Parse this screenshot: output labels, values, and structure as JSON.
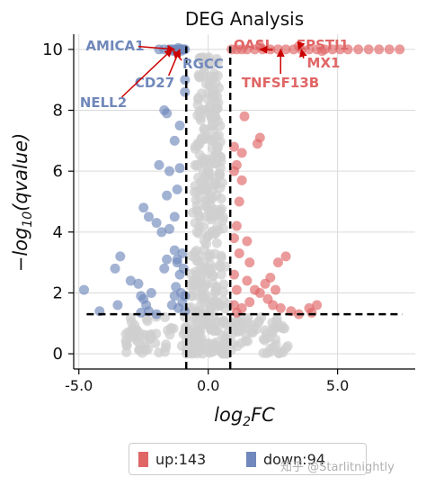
{
  "chart_data": {
    "type": "scatter",
    "title": "DEG Analysis",
    "xlabel_base": "log",
    "xlabel_sub": "2",
    "xlabel_tail": "FC",
    "ylabel_prefix": "−log",
    "ylabel_sub": "10",
    "ylabel_tail": "(qvalue)",
    "xlim": [
      -5.2,
      8.0
    ],
    "ylim": [
      -0.5,
      10.5
    ],
    "xticks": [
      -5.0,
      0.0,
      5.0
    ],
    "xtick_labels": [
      "-5.0",
      "0.0",
      "5.0"
    ],
    "yticks": [
      0,
      2,
      4,
      6,
      8,
      10
    ],
    "ytick_labels": [
      "0",
      "2",
      "4",
      "6",
      "8",
      "10"
    ],
    "grid": true,
    "thresholds": {
      "log2fc": 0.85,
      "neglog10q": 1.3
    },
    "colors": {
      "up": "#e06666",
      "down": "#7088bb",
      "ns": "#cfcfcf",
      "arrow": "#cc0000",
      "axis": "#000000"
    },
    "series": [
      {
        "key": "down",
        "points": [
          [
            -4.8,
            2.1
          ],
          [
            -4.2,
            1.4
          ],
          [
            -3.5,
            1.6
          ],
          [
            -3.6,
            2.8
          ],
          [
            -3.4,
            3.2
          ],
          [
            -3.0,
            2.4
          ],
          [
            -2.7,
            2.3
          ],
          [
            -2.6,
            1.9
          ],
          [
            -2.5,
            1.8
          ],
          [
            -2.3,
            1.4
          ],
          [
            -2.0,
            1.3
          ],
          [
            -2.6,
            1.35
          ],
          [
            -2.4,
            1.6
          ],
          [
            -2.2,
            2.0
          ],
          [
            -2.5,
            4.8
          ],
          [
            -2.3,
            4.5
          ],
          [
            -2.0,
            4.3
          ],
          [
            -1.8,
            4.0
          ],
          [
            -1.5,
            4.1
          ],
          [
            -1.3,
            4.5
          ],
          [
            -1.6,
            5.2
          ],
          [
            -1.2,
            5.4
          ],
          [
            -1.5,
            6.0
          ],
          [
            -1.1,
            6.1
          ],
          [
            -1.9,
            6.2
          ],
          [
            -1.3,
            7.0
          ],
          [
            -1.1,
            7.5
          ],
          [
            -1.7,
            8.0
          ],
          [
            -1.6,
            7.9
          ],
          [
            -0.9,
            9.0
          ],
          [
            -0.9,
            8.6
          ],
          [
            -1.2,
            3.0
          ],
          [
            -1.3,
            3.4
          ],
          [
            -1.0,
            3.3
          ],
          [
            -1.2,
            3.1
          ],
          [
            -1.1,
            2.6
          ],
          [
            -0.95,
            2.8
          ],
          [
            -1.25,
            2.2
          ],
          [
            -1.05,
            2.0
          ],
          [
            -0.9,
            1.9
          ],
          [
            -1.4,
            1.6
          ],
          [
            -1.15,
            1.5
          ],
          [
            -0.9,
            1.4
          ],
          [
            -1.7,
            2.8
          ],
          [
            -1.6,
            3.1
          ],
          [
            -1.0,
            1.7
          ],
          [
            -1.3,
            1.9
          ],
          [
            -1.9,
            10.0
          ],
          [
            -1.7,
            10.0
          ],
          [
            -1.5,
            10.0
          ],
          [
            -1.4,
            10.0
          ],
          [
            -1.3,
            10.0
          ],
          [
            -1.2,
            10.0
          ],
          [
            -1.1,
            10.0
          ],
          [
            -1.0,
            10.0
          ],
          [
            -0.95,
            10.0
          ],
          [
            -0.9,
            10.0
          ],
          [
            -1.35,
            9.95
          ],
          [
            -1.25,
            9.95
          ],
          [
            -1.05,
            9.95
          ],
          [
            -1.15,
            10.05
          ]
        ]
      },
      {
        "key": "up",
        "points": [
          [
            1.0,
            1.6
          ],
          [
            1.1,
            2.1
          ],
          [
            1.0,
            2.6
          ],
          [
            1.2,
            3.3
          ],
          [
            1.0,
            3.8
          ],
          [
            1.1,
            4.2
          ],
          [
            1.2,
            5.0
          ],
          [
            1.3,
            5.7
          ],
          [
            1.1,
            6.2
          ],
          [
            1.3,
            6.6
          ],
          [
            1.0,
            6.0
          ],
          [
            1.0,
            6.8
          ],
          [
            1.4,
            7.8
          ],
          [
            1.9,
            6.9
          ],
          [
            2.0,
            7.1
          ],
          [
            1.5,
            3.7
          ],
          [
            1.6,
            3.0
          ],
          [
            1.5,
            2.4
          ],
          [
            1.8,
            2.1
          ],
          [
            2.0,
            2.0
          ],
          [
            2.3,
            1.8
          ],
          [
            2.6,
            2.1
          ],
          [
            2.4,
            2.5
          ],
          [
            2.7,
            3.0
          ],
          [
            2.5,
            1.6
          ],
          [
            2.8,
            1.5
          ],
          [
            3.2,
            1.4
          ],
          [
            3.5,
            1.3
          ],
          [
            3.9,
            1.5
          ],
          [
            4.2,
            1.6
          ],
          [
            4.0,
            1.35
          ],
          [
            3.0,
            3.2
          ],
          [
            1.3,
            1.5
          ],
          [
            1.1,
            1.35
          ],
          [
            1.6,
            1.7
          ],
          [
            2.2,
            2.3
          ],
          [
            0.9,
            10.0
          ],
          [
            1.1,
            10.0
          ],
          [
            1.3,
            10.0
          ],
          [
            1.5,
            10.0
          ],
          [
            1.8,
            10.0
          ],
          [
            2.1,
            10.0
          ],
          [
            2.4,
            10.0
          ],
          [
            2.7,
            10.0
          ],
          [
            3.0,
            10.0
          ],
          [
            3.3,
            10.0
          ],
          [
            3.6,
            10.0
          ],
          [
            3.9,
            10.0
          ],
          [
            4.2,
            10.0
          ],
          [
            4.5,
            10.0
          ],
          [
            4.8,
            10.0
          ],
          [
            5.1,
            10.0
          ],
          [
            5.4,
            10.0
          ],
          [
            5.8,
            10.0
          ],
          [
            6.2,
            10.0
          ],
          [
            6.6,
            10.0
          ],
          [
            7.0,
            10.0
          ],
          [
            7.4,
            10.0
          ],
          [
            2.0,
            10.1
          ],
          [
            3.5,
            10.1
          ],
          [
            4.4,
            9.95
          ]
        ]
      }
    ],
    "annotations": [
      {
        "label": "AMICA1",
        "group": "down",
        "point": [
          -1.3,
          10.0
        ]
      },
      {
        "label": "RGCC",
        "group": "down",
        "point": [
          -1.35,
          9.95
        ]
      },
      {
        "label": "CD27",
        "group": "down",
        "point": [
          -1.1,
          10.0
        ]
      },
      {
        "label": "NELL2",
        "group": "down",
        "point": [
          -1.4,
          10.0
        ]
      },
      {
        "label": "OASL",
        "group": "up",
        "point": [
          2.0,
          10.0
        ]
      },
      {
        "label": "EPSTI1",
        "group": "up",
        "point": [
          3.5,
          10.0
        ]
      },
      {
        "label": "MX1",
        "group": "up",
        "point": [
          3.6,
          10.0
        ]
      },
      {
        "label": "TNFSF13B",
        "group": "up",
        "point": [
          2.8,
          10.0
        ]
      }
    ]
  },
  "legend": {
    "up_label": "up:143",
    "down_label": "down:94",
    "placement": "bottom-center"
  },
  "watermark": "知乎 @Starlitnightly"
}
